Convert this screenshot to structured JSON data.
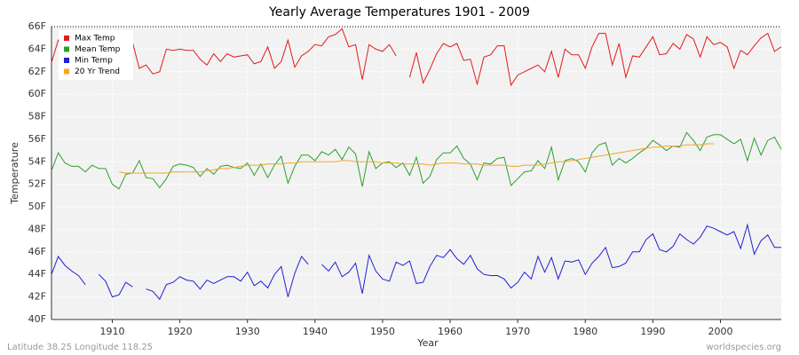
{
  "chart_data": {
    "type": "line",
    "title": "Yearly Average Temperatures 1901 - 2009",
    "x_label": "Year",
    "y_label": "Temperature",
    "footer_left": "Latitude 38.25 Longitude 118.25",
    "footer_right": "worldspecies.org",
    "x": [
      1901,
      1902,
      1903,
      1904,
      1905,
      1906,
      1907,
      1908,
      1909,
      1910,
      1911,
      1912,
      1913,
      1914,
      1915,
      1916,
      1917,
      1918,
      1919,
      1920,
      1921,
      1922,
      1923,
      1924,
      1925,
      1926,
      1927,
      1928,
      1929,
      1930,
      1931,
      1932,
      1933,
      1934,
      1935,
      1936,
      1937,
      1938,
      1939,
      1940,
      1941,
      1942,
      1943,
      1944,
      1945,
      1946,
      1947,
      1948,
      1949,
      1950,
      1951,
      1952,
      1953,
      1954,
      1955,
      1956,
      1957,
      1958,
      1959,
      1960,
      1961,
      1962,
      1963,
      1964,
      1965,
      1966,
      1967,
      1968,
      1969,
      1970,
      1971,
      1972,
      1973,
      1974,
      1975,
      1976,
      1977,
      1978,
      1979,
      1980,
      1981,
      1982,
      1983,
      1984,
      1985,
      1986,
      1987,
      1988,
      1989,
      1990,
      1991,
      1992,
      1993,
      1994,
      1995,
      1996,
      1997,
      1998,
      1999,
      2000,
      2001,
      2002,
      2003,
      2004,
      2005,
      2006,
      2007,
      2008,
      2009
    ],
    "series": [
      {
        "name": "Max Temp",
        "color": "#e31a1c",
        "values": [
          62.8,
          64.8,
          63.7,
          63.5,
          64.0,
          63.4,
          62.3,
          64.2,
          63.4,
          62.6,
          62.0,
          62.8,
          64.6,
          62.3,
          62.6,
          61.8,
          62.0,
          64.0,
          63.9,
          64.0,
          63.9,
          63.9,
          63.1,
          62.6,
          63.6,
          62.9,
          63.6,
          63.3,
          63.4,
          63.5,
          62.7,
          62.9,
          64.2,
          62.3,
          62.9,
          64.8,
          62.4,
          63.4,
          63.8,
          64.4,
          64.3,
          65.1,
          65.3,
          65.8,
          64.2,
          64.4,
          61.3,
          64.4,
          64.0,
          63.8,
          64.4,
          63.4,
          null,
          61.5,
          63.7,
          61.0,
          62.2,
          63.6,
          64.5,
          64.2,
          64.5,
          63.0,
          63.1,
          60.9,
          63.3,
          63.5,
          64.3,
          64.3,
          60.8,
          61.7,
          62.0,
          62.3,
          62.6,
          62.0,
          63.8,
          61.5,
          64.0,
          63.5,
          63.5,
          62.3,
          64.2,
          65.4,
          65.4,
          62.6,
          64.5,
          61.5,
          63.4,
          63.3,
          64.2,
          65.1,
          63.5,
          63.6,
          64.5,
          64.0,
          65.3,
          64.9,
          63.3,
          65.1,
          64.4,
          64.6,
          64.2,
          62.3,
          63.9,
          63.5,
          64.3,
          65.0,
          65.4,
          63.8,
          64.2
        ]
      },
      {
        "name": "Mean Temp",
        "color": "#2ca02c",
        "values": [
          53.2,
          54.8,
          53.9,
          53.6,
          53.6,
          53.1,
          53.7,
          53.4,
          53.4,
          52.0,
          51.6,
          52.9,
          53.0,
          54.1,
          52.6,
          52.5,
          51.7,
          52.5,
          53.6,
          53.8,
          53.7,
          53.5,
          52.7,
          53.4,
          52.9,
          53.6,
          53.7,
          53.5,
          53.4,
          53.9,
          52.8,
          53.8,
          52.6,
          53.7,
          54.5,
          52.1,
          53.6,
          54.6,
          54.6,
          54.1,
          54.9,
          54.6,
          55.1,
          54.2,
          55.3,
          54.7,
          51.8,
          54.9,
          53.4,
          53.9,
          54.0,
          53.5,
          53.9,
          52.8,
          54.4,
          52.1,
          52.7,
          54.2,
          54.8,
          54.8,
          55.4,
          54.3,
          53.8,
          52.4,
          53.9,
          53.8,
          54.3,
          54.4,
          51.9,
          52.5,
          53.1,
          53.2,
          54.1,
          53.4,
          55.3,
          52.4,
          54.1,
          54.3,
          54.0,
          53.1,
          54.8,
          55.5,
          55.7,
          53.7,
          54.3,
          53.9,
          54.3,
          54.8,
          55.2,
          55.9,
          55.5,
          55.0,
          55.4,
          55.3,
          56.6,
          55.9,
          55.0,
          56.2,
          56.4,
          56.4,
          56.0,
          55.6,
          56.0,
          54.1,
          56.1,
          54.6,
          55.9,
          56.2,
          55.1
        ]
      },
      {
        "name": "Min Temp",
        "color": "#1f1fd6",
        "values": [
          44.0,
          45.6,
          44.8,
          44.3,
          43.9,
          43.1,
          null,
          44.0,
          43.4,
          42.0,
          42.2,
          43.3,
          42.9,
          null,
          42.7,
          42.5,
          41.8,
          43.1,
          43.3,
          43.8,
          43.5,
          43.4,
          42.7,
          43.5,
          43.2,
          43.5,
          43.8,
          43.8,
          43.4,
          44.2,
          43.0,
          43.4,
          42.8,
          44.0,
          44.7,
          42.0,
          44.1,
          45.6,
          44.9,
          null,
          44.9,
          44.3,
          45.1,
          43.8,
          44.2,
          45.0,
          42.3,
          45.7,
          44.3,
          43.6,
          43.4,
          45.1,
          44.8,
          45.2,
          43.2,
          43.3,
          44.7,
          45.7,
          45.5,
          46.2,
          45.4,
          44.9,
          45.7,
          44.5,
          44.0,
          43.9,
          43.9,
          43.6,
          42.8,
          43.3,
          44.2,
          43.6,
          45.6,
          44.2,
          45.5,
          43.6,
          45.2,
          45.1,
          45.3,
          44.0,
          45.0,
          45.6,
          46.4,
          44.6,
          44.7,
          45.0,
          46.0,
          46.0,
          47.1,
          47.6,
          46.2,
          46.0,
          46.5,
          47.6,
          47.1,
          46.7,
          47.3,
          48.3,
          48.1,
          47.8,
          47.5,
          47.8,
          46.3,
          48.4,
          45.8,
          47.0,
          47.5,
          46.4,
          46.4
        ]
      },
      {
        "name": "20 Yr Trend",
        "color": "#f5a623",
        "values": [
          null,
          null,
          null,
          null,
          null,
          null,
          null,
          null,
          null,
          null,
          53.1,
          53.0,
          53.0,
          53.0,
          53.0,
          53.0,
          53.0,
          53.0,
          53.1,
          53.1,
          53.1,
          53.1,
          53.1,
          53.2,
          53.3,
          53.4,
          53.4,
          53.5,
          53.6,
          53.7,
          53.7,
          53.7,
          53.8,
          53.8,
          53.8,
          53.9,
          53.9,
          54.0,
          54.0,
          54.0,
          54.0,
          54.0,
          54.0,
          54.1,
          54.1,
          54.0,
          54.0,
          54.0,
          54.0,
          53.9,
          53.9,
          53.9,
          53.8,
          53.8,
          53.8,
          53.8,
          53.7,
          53.8,
          53.9,
          53.9,
          53.9,
          53.8,
          53.8,
          53.8,
          53.7,
          53.7,
          53.7,
          53.7,
          53.6,
          53.6,
          53.7,
          53.7,
          53.7,
          53.8,
          53.9,
          54.0,
          54.0,
          54.1,
          54.2,
          54.3,
          54.4,
          54.5,
          54.6,
          54.7,
          54.8,
          54.9,
          55.0,
          55.1,
          55.2,
          55.3,
          55.3,
          55.4,
          55.4,
          55.4,
          55.5,
          55.5,
          55.5,
          55.6,
          55.6,
          null,
          null,
          null,
          null,
          null,
          null,
          null,
          null,
          null,
          null
        ]
      }
    ],
    "xlim": [
      1901,
      2009
    ],
    "ylim": [
      40,
      66
    ],
    "xticks": [
      1910,
      1920,
      1930,
      1940,
      1950,
      1960,
      1970,
      1980,
      1990,
      2000
    ],
    "yticks": [
      {
        "value": 40,
        "label": "40F"
      },
      {
        "value": 42,
        "label": "42F"
      },
      {
        "value": 44,
        "label": "44F"
      },
      {
        "value": 46,
        "label": "46F"
      },
      {
        "value": 48,
        "label": "48F"
      },
      {
        "value": 50,
        "label": "50F"
      },
      {
        "value": 52,
        "label": "52F"
      },
      {
        "value": 54,
        "label": "54F"
      },
      {
        "value": 56,
        "label": "56F"
      },
      {
        "value": 58,
        "label": "58F"
      },
      {
        "value": 60,
        "label": "60F"
      },
      {
        "value": 62,
        "label": "62F"
      },
      {
        "value": 64,
        "label": "64F"
      },
      {
        "value": 66,
        "label": "66F"
      }
    ],
    "grid": true,
    "legend": "upper left"
  }
}
